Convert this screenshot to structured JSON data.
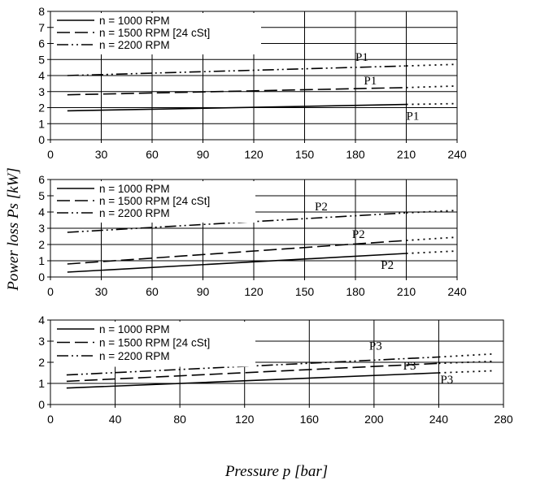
{
  "figure": {
    "ylabel": "Power loss Ps [kW]",
    "xlabel": "Pressure p [bar]"
  },
  "chart_data": [
    {
      "type": "line",
      "xlim": [
        0,
        240
      ],
      "ylim": [
        0,
        8
      ],
      "xticks": [
        0,
        30,
        60,
        90,
        120,
        150,
        180,
        210,
        240
      ],
      "yticks": [
        0,
        1,
        2,
        3,
        4,
        5,
        6,
        7,
        8
      ],
      "grid": true,
      "legend_position": "top-left",
      "series": [
        {
          "name": "n = 1000 RPM",
          "style": "solid",
          "x": [
            10,
            210
          ],
          "y": [
            1.8,
            2.2
          ],
          "ext_x": [
            210,
            240
          ],
          "ext_y": [
            2.2,
            2.25
          ]
        },
        {
          "name": "n = 1500 RPM [24 cSt]",
          "style": "dash",
          "x": [
            10,
            210
          ],
          "y": [
            2.8,
            3.25
          ],
          "ext_x": [
            210,
            240
          ],
          "ext_y": [
            3.25,
            3.35
          ]
        },
        {
          "name": "n = 2200 RPM",
          "style": "dashdotdot",
          "x": [
            10,
            210
          ],
          "y": [
            4.0,
            4.6
          ],
          "ext_x": [
            210,
            240
          ],
          "ext_y": [
            4.6,
            4.7
          ]
        }
      ],
      "annotations": [
        {
          "text": "P1",
          "x": 180,
          "y": 4.9
        },
        {
          "text": "P1",
          "x": 185,
          "y": 3.45
        },
        {
          "text": "P1",
          "x": 210,
          "y": 1.25
        }
      ]
    },
    {
      "type": "line",
      "xlim": [
        0,
        240
      ],
      "ylim": [
        0,
        6
      ],
      "xticks": [
        0,
        30,
        60,
        90,
        120,
        150,
        180,
        210,
        240
      ],
      "yticks": [
        0,
        1,
        2,
        3,
        4,
        5,
        6
      ],
      "grid": true,
      "legend_position": "top-left",
      "series": [
        {
          "name": "n = 1000 RPM",
          "style": "solid",
          "x": [
            10,
            210
          ],
          "y": [
            0.3,
            1.45
          ],
          "ext_x": [
            210,
            240
          ],
          "ext_y": [
            1.45,
            1.6
          ]
        },
        {
          "name": "n = 1500 RPM [24 cSt]",
          "style": "dash",
          "x": [
            10,
            210
          ],
          "y": [
            0.8,
            2.25
          ],
          "ext_x": [
            210,
            240
          ],
          "ext_y": [
            2.25,
            2.45
          ]
        },
        {
          "name": "n = 2200 RPM",
          "style": "dashdotdot",
          "x": [
            10,
            210
          ],
          "y": [
            2.75,
            3.95
          ],
          "ext_x": [
            210,
            240
          ],
          "ext_y": [
            3.95,
            4.1
          ]
        }
      ],
      "annotations": [
        {
          "text": "P2",
          "x": 156,
          "y": 4.1
        },
        {
          "text": "P2",
          "x": 178,
          "y": 2.4
        },
        {
          "text": "P2",
          "x": 195,
          "y": 0.5
        }
      ]
    },
    {
      "type": "line",
      "xlim": [
        0,
        280
      ],
      "ylim": [
        0,
        4
      ],
      "xticks": [
        0,
        40,
        80,
        120,
        160,
        200,
        240,
        280
      ],
      "yticks": [
        0,
        1,
        2,
        3,
        4
      ],
      "grid": true,
      "legend_position": "top-left",
      "series": [
        {
          "name": "n = 1000 RPM",
          "style": "solid",
          "x": [
            10,
            240
          ],
          "y": [
            0.78,
            1.5
          ],
          "ext_x": [
            240,
            275
          ],
          "ext_y": [
            1.5,
            1.6
          ]
        },
        {
          "name": "n = 1500 RPM [24 cSt]",
          "style": "dash",
          "x": [
            10,
            240
          ],
          "y": [
            1.1,
            1.95
          ],
          "ext_x": [
            240,
            275
          ],
          "ext_y": [
            1.95,
            2.05
          ]
        },
        {
          "name": "n = 2200 RPM",
          "style": "dashdotdot",
          "x": [
            10,
            240
          ],
          "y": [
            1.4,
            2.25
          ],
          "ext_x": [
            240,
            275
          ],
          "ext_y": [
            2.25,
            2.4
          ]
        }
      ],
      "annotations": [
        {
          "text": "P3",
          "x": 197,
          "y": 2.6
        },
        {
          "text": "P3",
          "x": 218,
          "y": 1.65
        },
        {
          "text": "P3",
          "x": 241,
          "y": 1.0
        }
      ]
    }
  ]
}
